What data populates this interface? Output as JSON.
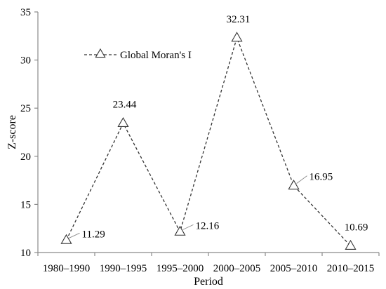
{
  "chart_data": {
    "type": "line",
    "xlabel": "Period",
    "ylabel": "Z-score",
    "categories": [
      "1980–1990",
      "1990–1995",
      "1995–2000",
      "2000–2005",
      "2005–2010",
      "2010–2015"
    ],
    "series": [
      {
        "name": "Global Moran's I",
        "values": [
          11.29,
          23.44,
          12.16,
          32.31,
          16.95,
          10.69
        ],
        "value_labels": [
          "11.29",
          "23.44",
          "12.16",
          "32.31",
          "16.95",
          "10.69"
        ],
        "line_style": "dashed",
        "marker": "open-triangle",
        "color": "#333333"
      }
    ],
    "ylim": [
      10,
      35
    ],
    "yticks": [
      10,
      15,
      20,
      25,
      30,
      35
    ],
    "grid": false,
    "legend_position": "top-left-inside"
  }
}
